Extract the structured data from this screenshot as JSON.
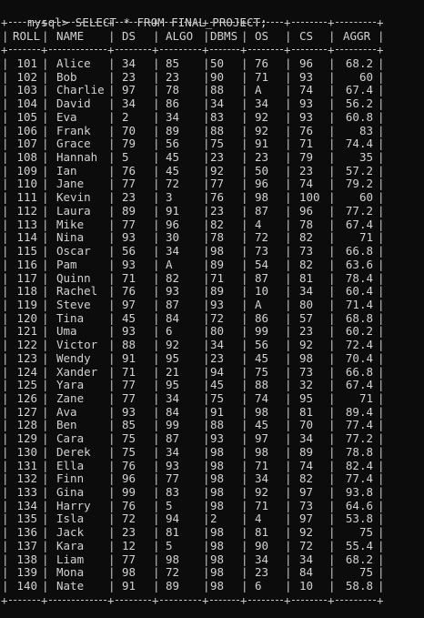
{
  "terminal": {
    "prompt": "mysql> ",
    "command": "SELECT * FROM FINAL_PROJECT;"
  },
  "table": {
    "columns": [
      "ROLL",
      "NAME",
      "DS",
      "ALGO",
      "DBMS",
      "OS",
      "CS",
      "AGGR"
    ],
    "rows": [
      [
        "101",
        "Alice",
        "34",
        "85",
        "50",
        "76",
        "96",
        "68.2"
      ],
      [
        "102",
        "Bob",
        "23",
        "23",
        "90",
        "71",
        "93",
        "60"
      ],
      [
        "103",
        "Charlie",
        "97",
        "78",
        "88",
        "A",
        "74",
        "67.4"
      ],
      [
        "104",
        "David",
        "34",
        "86",
        "34",
        "34",
        "93",
        "56.2"
      ],
      [
        "105",
        "Eva",
        "2",
        "34",
        "83",
        "92",
        "93",
        "60.8"
      ],
      [
        "106",
        "Frank",
        "70",
        "89",
        "88",
        "92",
        "76",
        "83"
      ],
      [
        "107",
        "Grace",
        "79",
        "56",
        "75",
        "91",
        "71",
        "74.4"
      ],
      [
        "108",
        "Hannah",
        "5",
        "45",
        "23",
        "23",
        "79",
        "35"
      ],
      [
        "109",
        "Ian",
        "76",
        "45",
        "92",
        "50",
        "23",
        "57.2"
      ],
      [
        "110",
        "Jane",
        "77",
        "72",
        "77",
        "96",
        "74",
        "79.2"
      ],
      [
        "111",
        "Kevin",
        "23",
        "3",
        "76",
        "98",
        "100",
        "60"
      ],
      [
        "112",
        "Laura",
        "89",
        "91",
        "23",
        "87",
        "96",
        "77.2"
      ],
      [
        "113",
        "Mike",
        "77",
        "96",
        "82",
        "4",
        "78",
        "67.4"
      ],
      [
        "114",
        "Nina",
        "93",
        "30",
        "78",
        "72",
        "82",
        "71"
      ],
      [
        "115",
        "Oscar",
        "56",
        "34",
        "98",
        "73",
        "73",
        "66.8"
      ],
      [
        "116",
        "Pam",
        "93",
        "A",
        "89",
        "54",
        "82",
        "63.6"
      ],
      [
        "117",
        "Quinn",
        "71",
        "82",
        "71",
        "87",
        "81",
        "78.4"
      ],
      [
        "118",
        "Rachel",
        "76",
        "93",
        "89",
        "10",
        "34",
        "60.4"
      ],
      [
        "119",
        "Steve",
        "97",
        "87",
        "93",
        "A",
        "80",
        "71.4"
      ],
      [
        "120",
        "Tina",
        "45",
        "84",
        "72",
        "86",
        "57",
        "68.8"
      ],
      [
        "121",
        "Uma",
        "93",
        "6",
        "80",
        "99",
        "23",
        "60.2"
      ],
      [
        "122",
        "Victor",
        "88",
        "92",
        "34",
        "56",
        "92",
        "72.4"
      ],
      [
        "123",
        "Wendy",
        "91",
        "95",
        "23",
        "45",
        "98",
        "70.4"
      ],
      [
        "124",
        "Xander",
        "71",
        "21",
        "94",
        "75",
        "73",
        "66.8"
      ],
      [
        "125",
        "Yara",
        "77",
        "95",
        "45",
        "88",
        "32",
        "67.4"
      ],
      [
        "126",
        "Zane",
        "77",
        "34",
        "75",
        "74",
        "95",
        "71"
      ],
      [
        "127",
        "Ava",
        "93",
        "84",
        "91",
        "98",
        "81",
        "89.4"
      ],
      [
        "128",
        "Ben",
        "85",
        "99",
        "88",
        "45",
        "70",
        "77.4"
      ],
      [
        "129",
        "Cara",
        "75",
        "87",
        "93",
        "97",
        "34",
        "77.2"
      ],
      [
        "130",
        "Derek",
        "75",
        "34",
        "98",
        "98",
        "89",
        "78.8"
      ],
      [
        "131",
        "Ella",
        "76",
        "93",
        "98",
        "71",
        "74",
        "82.4"
      ],
      [
        "132",
        "Finn",
        "96",
        "77",
        "98",
        "34",
        "82",
        "77.4"
      ],
      [
        "133",
        "Gina",
        "99",
        "83",
        "98",
        "92",
        "97",
        "93.8"
      ],
      [
        "134",
        "Harry",
        "76",
        "5",
        "98",
        "71",
        "73",
        "64.6"
      ],
      [
        "135",
        "Isla",
        "72",
        "94",
        "2",
        "4",
        "97",
        "53.8"
      ],
      [
        "136",
        "Jack",
        "23",
        "81",
        "98",
        "81",
        "92",
        "75"
      ],
      [
        "137",
        "Kara",
        "12",
        "5",
        "98",
        "90",
        "72",
        "55.4"
      ],
      [
        "138",
        "Liam",
        "77",
        "98",
        "98",
        "34",
        "34",
        "68.2"
      ],
      [
        "139",
        "Mona",
        "98",
        "72",
        "98",
        "23",
        "84",
        "75"
      ],
      [
        "140",
        "Nate",
        "91",
        "89",
        "98",
        "6",
        "10",
        "58.8"
      ]
    ]
  }
}
